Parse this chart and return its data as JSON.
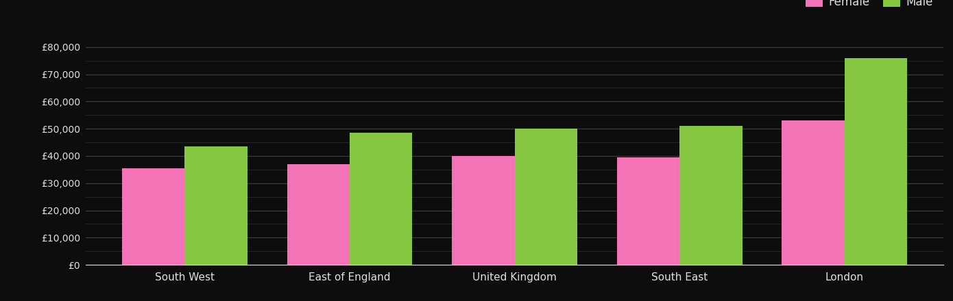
{
  "categories": [
    "South West",
    "East of England",
    "United Kingdom",
    "South East",
    "London"
  ],
  "female_values": [
    35500,
    37000,
    40000,
    39500,
    53000
  ],
  "male_values": [
    43500,
    48500,
    50000,
    51000,
    76000
  ],
  "female_color": "#f472b6",
  "male_color": "#86c842",
  "background_color": "#0d0d0d",
  "text_color": "#e0e0e0",
  "grid_color": "#3a3a3a",
  "bar_width": 0.38,
  "ylim": [
    0,
    84000
  ],
  "yticks_major": [
    0,
    10000,
    20000,
    30000,
    40000,
    50000,
    60000,
    70000,
    80000
  ],
  "yticks_minor": [
    5000,
    15000,
    25000,
    35000,
    45000,
    55000,
    65000,
    75000
  ],
  "legend_labels": [
    "Female",
    "Male"
  ],
  "figsize": [
    13.9,
    4.4
  ],
  "dpi": 100
}
